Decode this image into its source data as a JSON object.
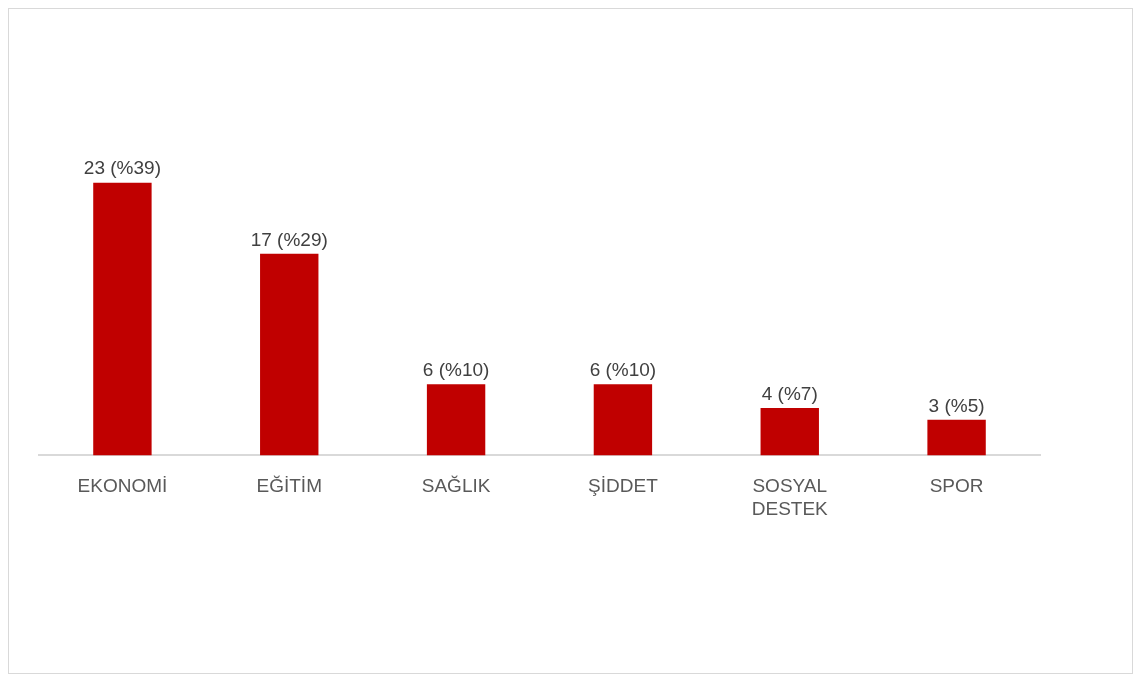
{
  "chart_data": {
    "type": "bar",
    "categories": [
      "EKONOMİ",
      "EĞİTİM",
      "SAĞLIK",
      "ŞİDDET",
      "SOSYAL DESTEK",
      "SPOR"
    ],
    "values": [
      23,
      17,
      6,
      6,
      4,
      3
    ],
    "value_labels": [
      "23 (%39)",
      "17 (%29)",
      "6 (%10)",
      "6 (%10)",
      "4 (%7)",
      "3 (%5)"
    ],
    "color": "#c00000",
    "grid": false,
    "legend": false
  }
}
